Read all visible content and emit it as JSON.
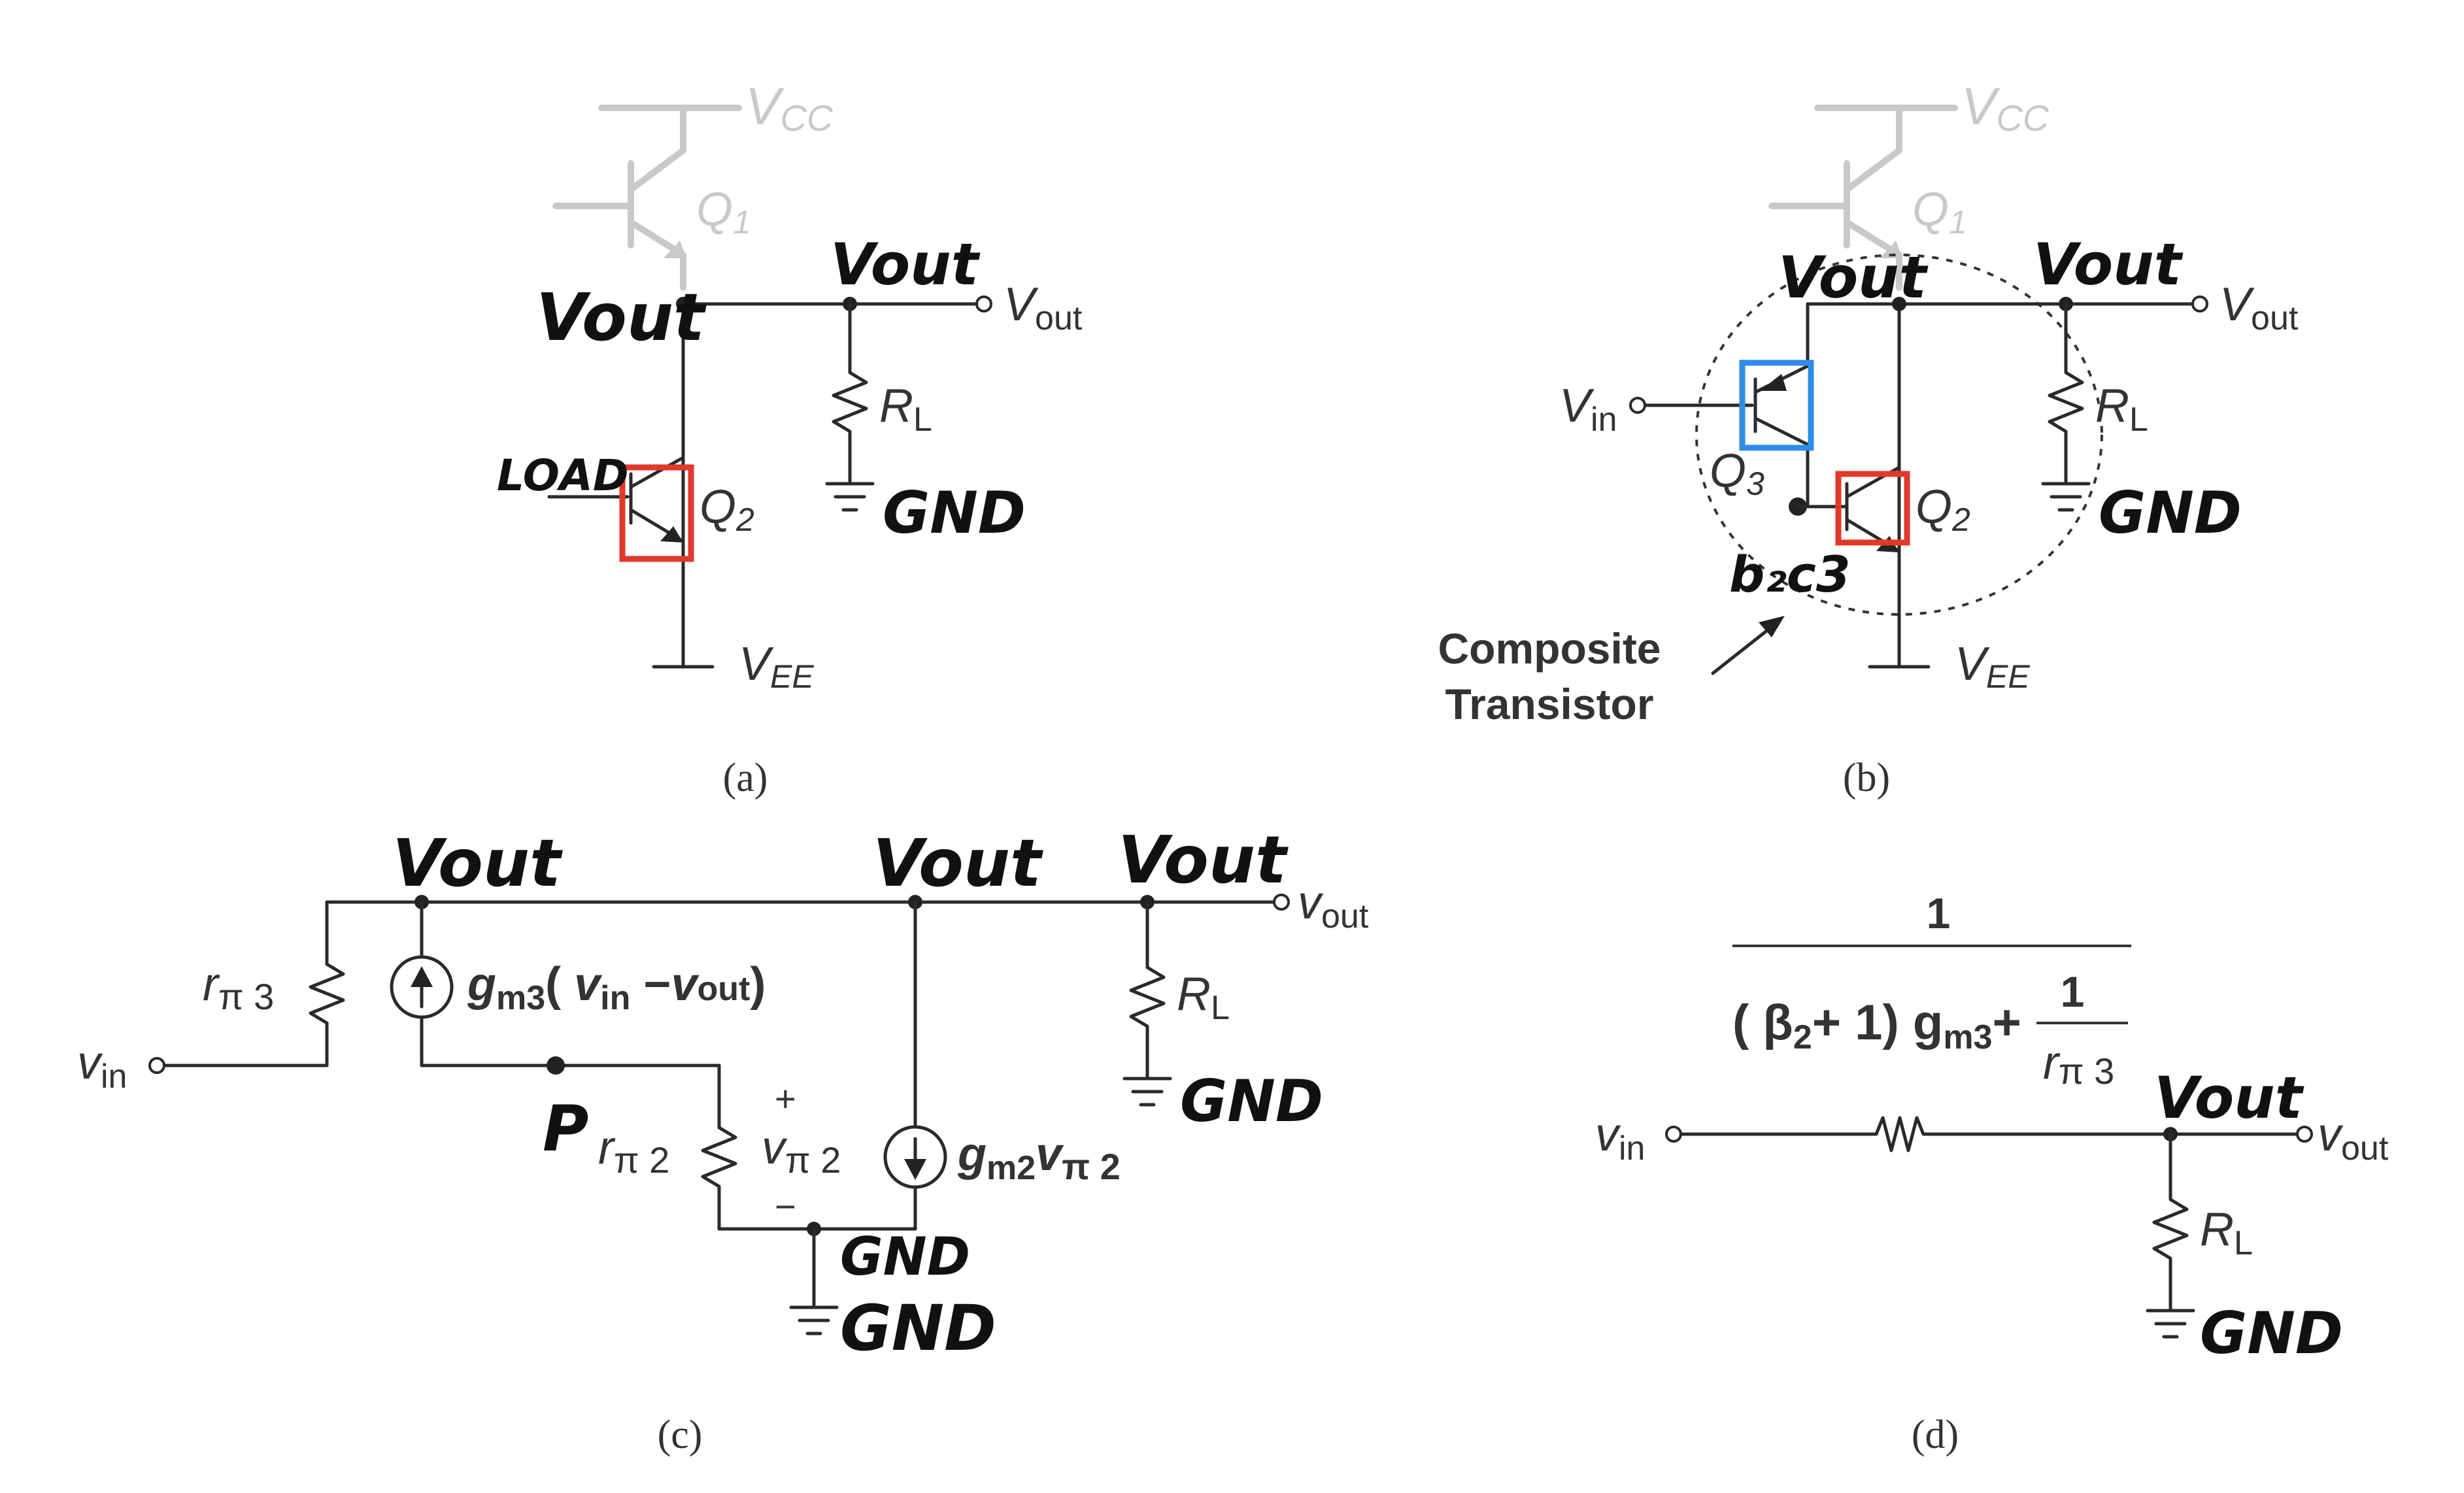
{
  "captions": [
    "(a)",
    "(b)",
    "(c)",
    "(d)"
  ],
  "panel_a": {
    "vcc": "V",
    "vcc_sub": "CC",
    "q1": "Q",
    "q1_sub": "1",
    "q2": "Q",
    "q2_sub": "2",
    "vee": "V",
    "vee_sub": "EE",
    "vout": "V",
    "vout_sub": "out",
    "rl": "R",
    "rl_sub": "L",
    "hand_vout_left": "Vout",
    "hand_vout_mid": "Vout",
    "hand_gnd": "GND",
    "hand_load": "LOAD"
  },
  "panel_b": {
    "vcc": "V",
    "vcc_sub": "CC",
    "q1": "Q",
    "q1_sub": "1",
    "q2": "Q",
    "q2_sub": "2",
    "q3": "Q",
    "q3_sub": "3",
    "vin": "V",
    "vin_sub": "in",
    "vee": "V",
    "vee_sub": "EE",
    "vout": "V",
    "vout_sub": "out",
    "rl": "R",
    "rl_sub": "L",
    "composite_line1": "Composite",
    "composite_line2": "Transistor",
    "hand_vout_left": "Vout",
    "hand_vout_mid": "Vout",
    "hand_gnd": "GND",
    "hand_b2c3": "b₂c3"
  },
  "panel_c": {
    "vin": "v",
    "vin_sub": "in",
    "vout": "v",
    "vout_sub": "out",
    "rpi3": "r",
    "rpi3_sub": "π 3",
    "rpi2": "r",
    "rpi2_sub": "π 2",
    "vpi2": "v",
    "vpi2_sub": "π 2",
    "plus": "+",
    "minus": "−",
    "gm3_src": "g",
    "gm3_sub": "m3",
    "gm3_expr_open": "( ",
    "gm3_vin": "v",
    "gm3_vin_sub": "in",
    "gm3_minus": " −",
    "gm3_vout": "v",
    "gm3_vout_sub": "out",
    "gm3_close": ")",
    "gm2_src": "g",
    "gm2_sub": "m2",
    "gm2_v": "v",
    "gm2_v_sub": "π 2",
    "rl": "R",
    "rl_sub": "L",
    "hand_vout_1": "Vout",
    "hand_vout_2": "Vout",
    "hand_vout_3": "Vout",
    "hand_p": "P",
    "hand_gnd_node": "GND",
    "hand_gnd_ground": "GND",
    "hand_gnd_rl": "GND"
  },
  "panel_d": {
    "num": "1",
    "den_open": "( β",
    "den_beta_sub": "2",
    "den_mid": "+ 1) g",
    "den_gm_sub": "m3",
    "den_plus": "+",
    "inner_num": "1",
    "inner_den": "r",
    "inner_den_sub": "π 3",
    "vin": "v",
    "vin_sub": "in",
    "vout": "v",
    "vout_sub": "out",
    "rl": "R",
    "rl_sub": "L",
    "hand_vout": "Vout",
    "hand_gnd": "GND"
  },
  "colors": {
    "red_box": "#e0392b",
    "blue_box": "#2f8ce8",
    "ghost": "#c9c9c9"
  }
}
